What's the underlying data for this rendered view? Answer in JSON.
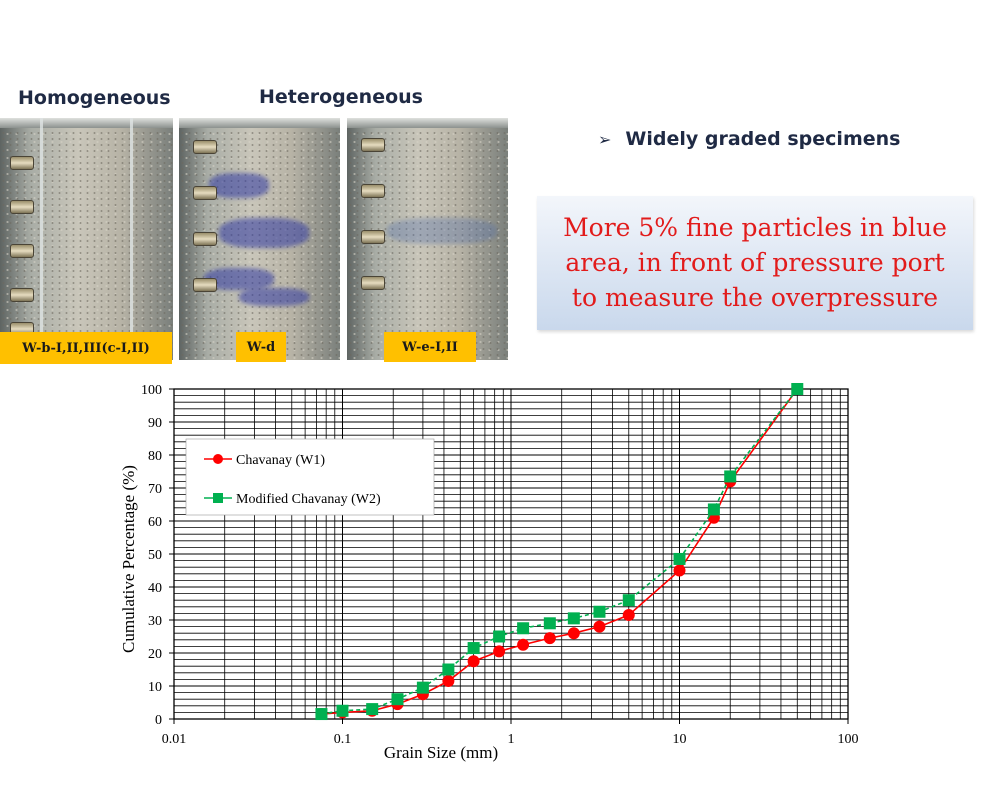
{
  "headings": {
    "homogeneous": "Homogeneous",
    "heterogeneous": "Heterogeneous"
  },
  "photo_labels": [
    "W-b-I,II,III(c-I,II)",
    "W-d",
    "W-e-I,II"
  ],
  "bullet": {
    "icon": "arrow-bullet-icon",
    "text": "Widely graded specimens"
  },
  "callout": {
    "lines": [
      "More 5% fine particles in blue",
      "area, in front of pressure port",
      "to measure the overpressure"
    ]
  },
  "colors": {
    "w1": "#ff0000",
    "w2": "#00b050",
    "label_bg": "#ffc000",
    "callout_text": "#e21b1b"
  },
  "chart_data": {
    "type": "line",
    "xscale": "log",
    "xlim": [
      0.01,
      100
    ],
    "ylim": [
      0,
      100
    ],
    "xlabel": "Grain Size (mm)",
    "ylabel": "Cumulative Percentage (%)",
    "xticks": [
      "0.01",
      "0.1",
      "1",
      "10",
      "100"
    ],
    "yticks": [
      "0",
      "10",
      "20",
      "30",
      "40",
      "50",
      "60",
      "70",
      "80",
      "90",
      "100"
    ],
    "grid": true,
    "legend": "top-left",
    "series": [
      {
        "name": "Chavanay (W1)",
        "marker": "circle",
        "color": "#ff0000",
        "x": [
          0.075,
          0.1,
          0.15,
          0.212,
          0.3,
          0.425,
          0.6,
          0.85,
          1.18,
          1.7,
          2.36,
          3.35,
          5,
          10,
          16,
          20,
          50
        ],
        "y": [
          1.5,
          2,
          2.5,
          4.5,
          7.5,
          11.5,
          17.5,
          20.5,
          22.5,
          24.5,
          26,
          28,
          31.5,
          45,
          61,
          72,
          100
        ]
      },
      {
        "name": "Modified Chavanay (W2)",
        "marker": "square",
        "color": "#00b050",
        "x": [
          0.075,
          0.1,
          0.15,
          0.212,
          0.3,
          0.425,
          0.6,
          0.85,
          1.18,
          1.7,
          2.36,
          3.35,
          5,
          10,
          16,
          20,
          50
        ],
        "y": [
          1.5,
          2.5,
          3,
          6,
          9.5,
          15,
          21.5,
          25,
          27.5,
          29,
          30.5,
          32.5,
          36,
          48.5,
          63.5,
          73.5,
          100
        ]
      }
    ]
  }
}
